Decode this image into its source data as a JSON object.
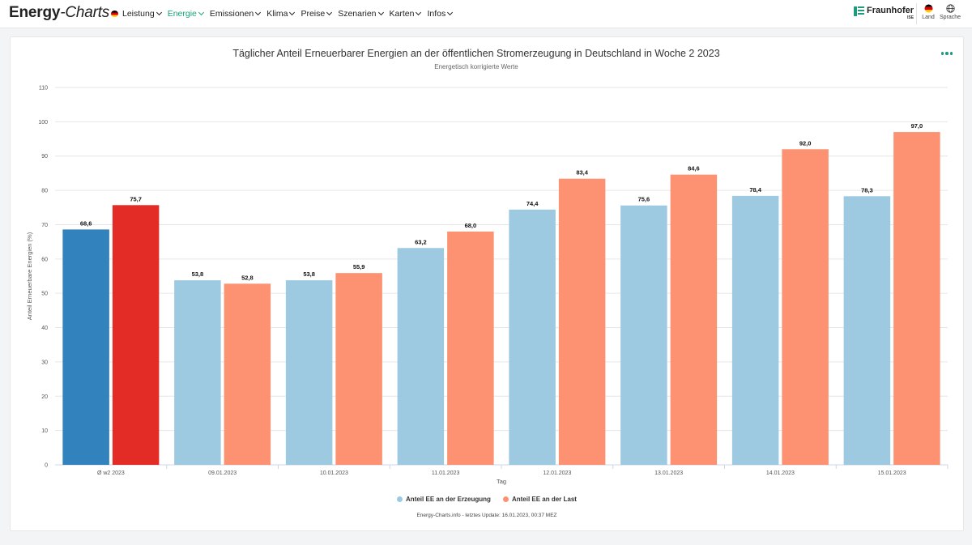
{
  "nav": {
    "brand_bold": "Energy",
    "brand_italic": "-Charts",
    "items": [
      {
        "label": "Leistung",
        "active": false
      },
      {
        "label": "Energie",
        "active": true
      },
      {
        "label": "Emissionen",
        "active": false
      },
      {
        "label": "Klima",
        "active": false
      },
      {
        "label": "Preise",
        "active": false
      },
      {
        "label": "Szenarien",
        "active": false
      },
      {
        "label": "Karten",
        "active": false
      },
      {
        "label": "Infos",
        "active": false
      }
    ],
    "partner": "Fraunhofer",
    "partner_sub": "ISE",
    "land_label": "Land",
    "language_label": "Sprache"
  },
  "colors": {
    "accent": "#19a37a",
    "series1_highlight": "#3182bd",
    "series2_highlight": "#e32c26",
    "series1": "#9ecae1",
    "series2": "#fc9272"
  },
  "chart_data": {
    "type": "bar",
    "title": "Täglicher Anteil Erneuerbarer Energien an der öffentlichen Stromerzeugung in Deutschland in Woche 2 2023",
    "subtitle": "Energetisch korrigierte Werte",
    "xlabel": "Tag",
    "ylabel": "Anteil Erneuerbare Energien (%)",
    "ylim": [
      0,
      110
    ],
    "yticks": [
      0,
      10,
      20,
      30,
      40,
      50,
      60,
      70,
      80,
      90,
      100,
      110
    ],
    "grid": true,
    "legend_position": "bottom-center",
    "categories": [
      "Ø w2 2023",
      "09.01.2023",
      "10.01.2023",
      "11.01.2023",
      "12.01.2023",
      "13.01.2023",
      "14.01.2023",
      "15.01.2023"
    ],
    "series": [
      {
        "name": "Anteil EE an der Erzeugung",
        "values": [
          68.6,
          53.8,
          53.8,
          63.2,
          74.4,
          75.6,
          78.4,
          78.3
        ],
        "labels": [
          "68,6",
          "53,8",
          "53,8",
          "63,2",
          "74,4",
          "75,6",
          "78,4",
          "78,3"
        ]
      },
      {
        "name": "Anteil EE an der Last",
        "values": [
          75.7,
          52.8,
          55.9,
          68.0,
          83.4,
          84.6,
          92.0,
          97.0
        ],
        "labels": [
          "75,7",
          "52,8",
          "55,9",
          "68,0",
          "83,4",
          "84,6",
          "92,0",
          "97,0"
        ]
      }
    ]
  },
  "credits": "Energy-Charts.info - letztes Update: 16.01.2023, 00:37 MEZ"
}
